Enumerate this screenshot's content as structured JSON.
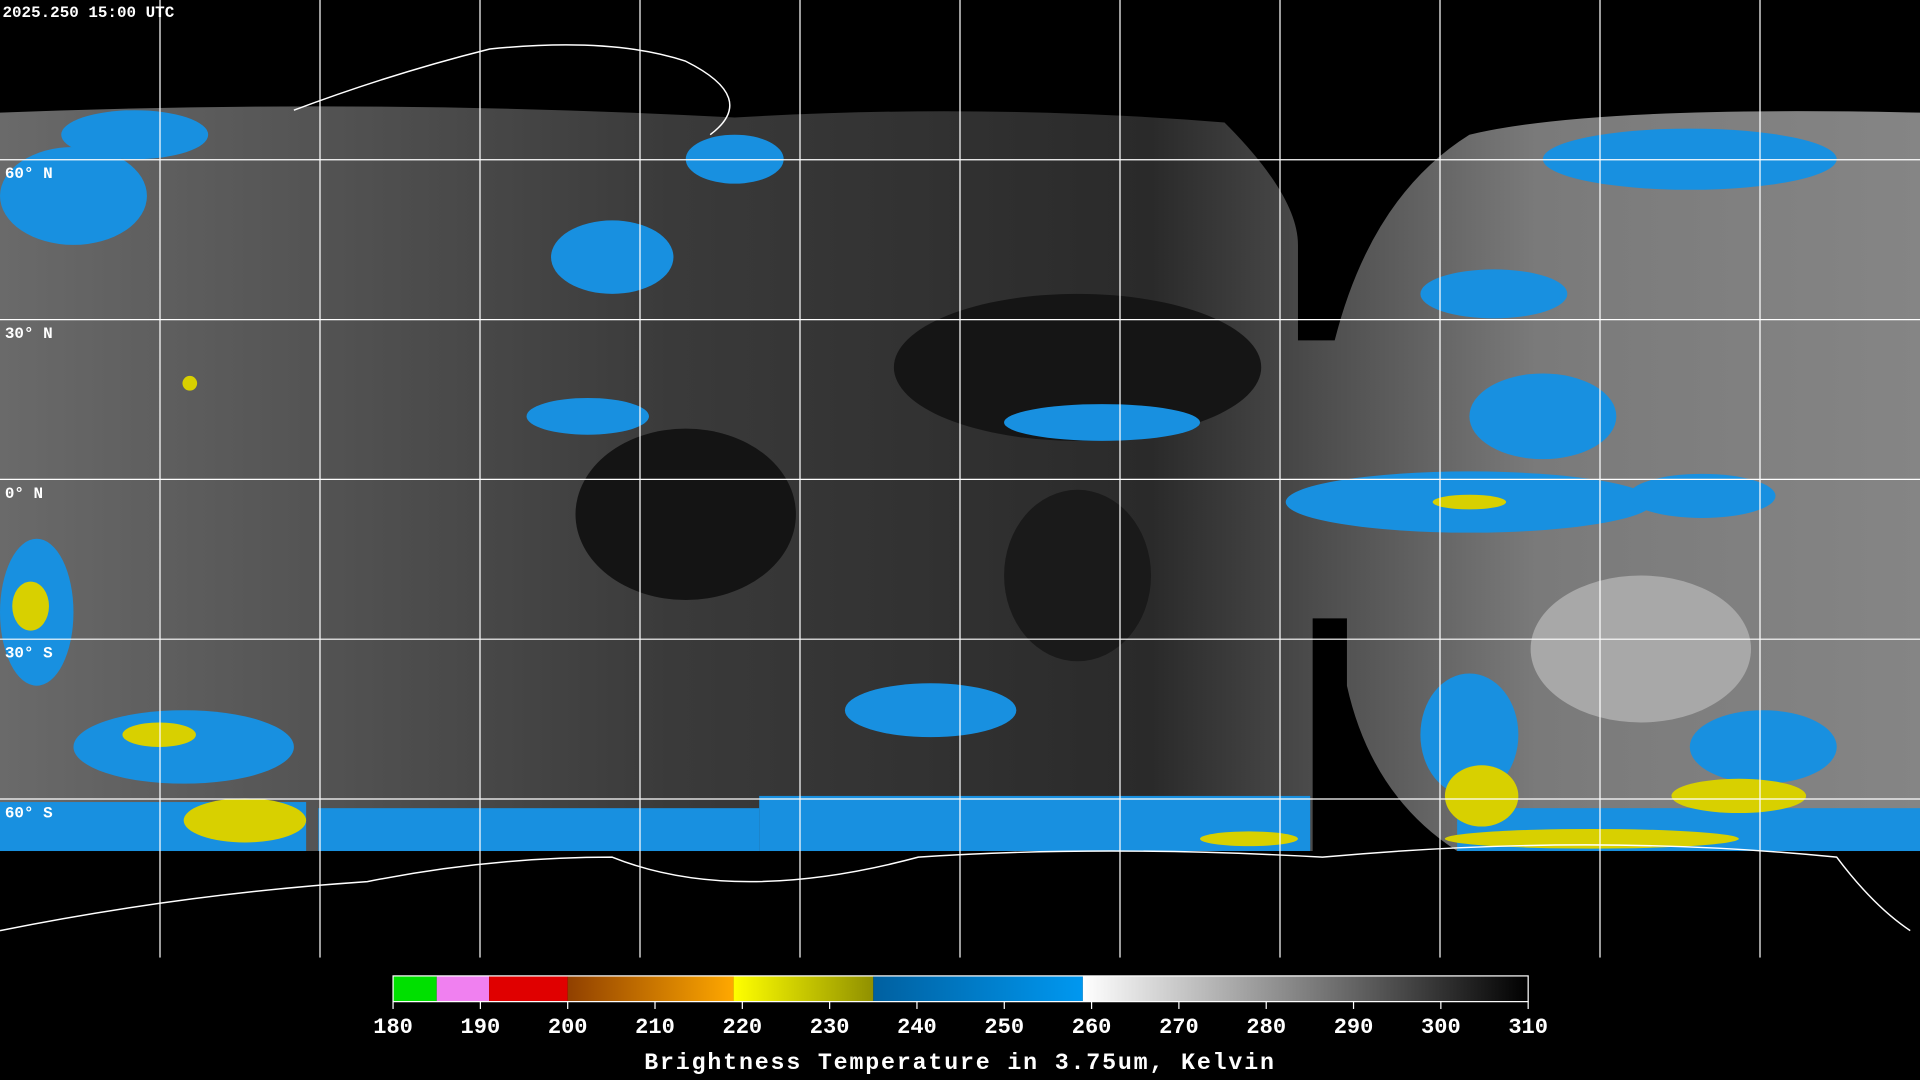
{
  "header": {
    "timestamp": "2025.250 15:00 UTC"
  },
  "map": {
    "lat_range": [
      90,
      -90
    ],
    "lon_range": [
      -180,
      180
    ],
    "lat_lines": [
      {
        "value": 60,
        "label": "60° N"
      },
      {
        "value": 30,
        "label": "30° N"
      },
      {
        "value": 0,
        "label": "0° N"
      },
      {
        "value": -30,
        "label": "30° S"
      },
      {
        "value": -60,
        "label": "60° S"
      }
    ],
    "lon_lines": [
      -150,
      -120,
      -90,
      -60,
      -30,
      0,
      30,
      60,
      90,
      120,
      150
    ],
    "grid_color": "#ffffff"
  },
  "colorbar": {
    "title": "Brightness Temperature in 3.75um, Kelvin",
    "range": [
      180,
      310
    ],
    "ticks": [
      180,
      190,
      200,
      210,
      220,
      230,
      240,
      250,
      260,
      270,
      280,
      290,
      300,
      310
    ],
    "segments": [
      {
        "from": 180,
        "to": 185,
        "colors": [
          "#00e000",
          "#00e000"
        ]
      },
      {
        "from": 185,
        "to": 191,
        "colors": [
          "#f080f0",
          "#f080f0"
        ]
      },
      {
        "from": 191,
        "to": 200,
        "colors": [
          "#e00000",
          "#e00000"
        ]
      },
      {
        "from": 200,
        "to": 219,
        "colors": [
          "#904000",
          "#ffa800"
        ]
      },
      {
        "from": 219,
        "to": 235,
        "colors": [
          "#ffff00",
          "#909000"
        ]
      },
      {
        "from": 235,
        "to": 259,
        "colors": [
          "#0060a0",
          "#0098f0"
        ]
      },
      {
        "from": 259,
        "to": 310,
        "colors": [
          "#ffffff",
          "#000000"
        ]
      }
    ]
  }
}
